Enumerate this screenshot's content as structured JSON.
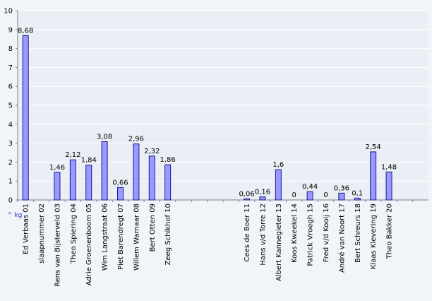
{
  "chart_data": {
    "type": "bar",
    "categories": [
      "Ed Verbaas 01",
      "slaapnummer 02",
      "Rens van Bijsterveld 03",
      "Theo Spiering 04",
      "Adrie Groenenboom 05",
      "Wim Langstraat 06",
      "Piet Barendregt 07",
      "Willem Warnaar 08",
      "Bert Otten 09",
      "Zeeg Schikhof 10",
      "",
      "",
      "",
      "",
      "Cees de Boer 11",
      "Hans v/d Torre 12",
      "Albert Kannegieter 13",
      "Koos Kweekel 14",
      "Patrick Vroegh 15",
      "Fred v/d Kooij 16",
      "André van Noort 17",
      "Bert Schreurs 18",
      "Klaas Klevering 19",
      "Theo Bakker 20",
      "",
      ""
    ],
    "values": [
      8.68,
      null,
      1.46,
      2.12,
      1.84,
      3.08,
      0.66,
      2.96,
      2.32,
      1.86,
      null,
      null,
      null,
      null,
      0.06,
      0.16,
      1.6,
      0,
      0.44,
      0,
      0.36,
      0.1,
      2.54,
      1.48,
      null,
      null
    ],
    "data_labels": [
      "8,68",
      "",
      "1,46",
      "2,12",
      "1,84",
      "3,08",
      "0,66",
      "2,96",
      "2,32",
      "1,86",
      "",
      "",
      "",
      "",
      "0,06",
      "0,16",
      "1,6",
      "0",
      "0,44",
      "0",
      "0,36",
      "0,1",
      "2,54",
      "1,48",
      "",
      ""
    ],
    "ylim": [
      0,
      10
    ],
    "yticks": [
      "0",
      "1",
      "2",
      "3",
      "4",
      "5",
      "6",
      "7",
      "8",
      "9",
      "10"
    ],
    "unit_label": "^ kg",
    "grid": true,
    "colors": {
      "bar_fill": "#9999ff",
      "bar_stroke": "#1a1a8c",
      "plot_bg": "#eaeef5",
      "grid": "#ffffff",
      "axis": "#808080",
      "unit": "#1a33c8"
    }
  }
}
